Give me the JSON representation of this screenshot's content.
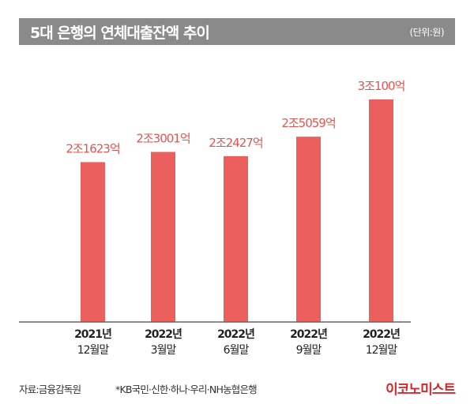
{
  "header": {
    "title": "5대 은행의 연체대출잔액 추이",
    "unit": "(단위:원)"
  },
  "colors": {
    "bar": "#eb5f5c",
    "label": "#e05650",
    "header_bg": "#8a8a8a",
    "axis": "#666666",
    "logo": "#d7262b"
  },
  "chart_data": {
    "type": "bar",
    "title": "5대 은행의 연체대출잔액 추이",
    "unit": "억원",
    "categories": [
      [
        "2021년",
        "12월말"
      ],
      [
        "2022년",
        "3월말"
      ],
      [
        "2022년",
        "6월말"
      ],
      [
        "2022년",
        "9월말"
      ],
      [
        "2022년",
        "12월말"
      ]
    ],
    "values": [
      21623,
      23001,
      22427,
      25059,
      30100
    ],
    "data_labels": [
      "2조1623억",
      "2조3001억",
      "2조2427억",
      "2조5059억",
      "3조100억"
    ],
    "xlabel": "",
    "ylabel": "",
    "ylim": [
      0,
      32000
    ],
    "grid": false,
    "legend": "none"
  },
  "footer": {
    "source": "자료:금융감독원",
    "note": "*KB국민·신한·하나·우리·NH농협은행",
    "logo": "이코노미스트"
  }
}
